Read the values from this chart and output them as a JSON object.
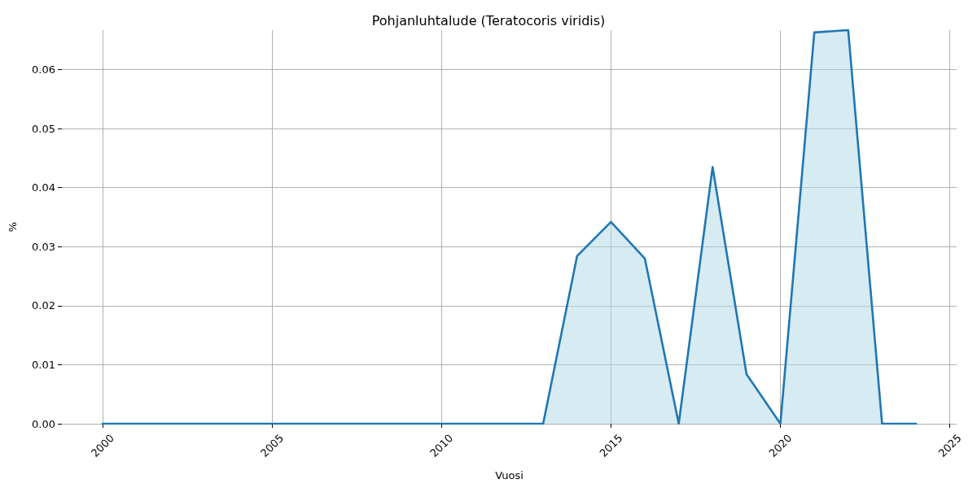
{
  "chart_data": {
    "type": "area",
    "title": "Pohjanluhtalude (Teratocoris viridis)",
    "xlabel": "Vuosi",
    "ylabel": "%",
    "x": [
      2000,
      2001,
      2002,
      2003,
      2004,
      2005,
      2006,
      2007,
      2008,
      2009,
      2010,
      2011,
      2012,
      2013,
      2014,
      2015,
      2016,
      2017,
      2018,
      2019,
      2020,
      2021,
      2022,
      2023,
      2024
    ],
    "series": [
      {
        "color": "#1f77b4",
        "values": [
          0,
          0,
          0,
          0,
          0,
          0,
          0,
          0,
          0,
          0,
          0,
          0,
          0,
          0,
          0.0284,
          0.0342,
          0.028,
          0,
          0.0435,
          0.0084,
          0,
          0.0663,
          0.0667,
          0,
          0
        ]
      }
    ],
    "xlim": [
      1998.8,
      2025.2
    ],
    "xticks": [
      2000,
      2005,
      2010,
      2015,
      2020,
      2025
    ],
    "ylim": [
      0,
      0.0667
    ],
    "yticks": [
      {
        "value": 0,
        "label": "0.00"
      },
      {
        "value": 0.01,
        "label": "0.01"
      },
      {
        "value": 0.02,
        "label": "0.02"
      },
      {
        "value": 0.03,
        "label": "0.03"
      },
      {
        "value": 0.04,
        "label": "0.04"
      },
      {
        "value": 0.05,
        "label": "0.05"
      },
      {
        "value": 0.06,
        "label": "0.06"
      }
    ],
    "grid": true
  }
}
